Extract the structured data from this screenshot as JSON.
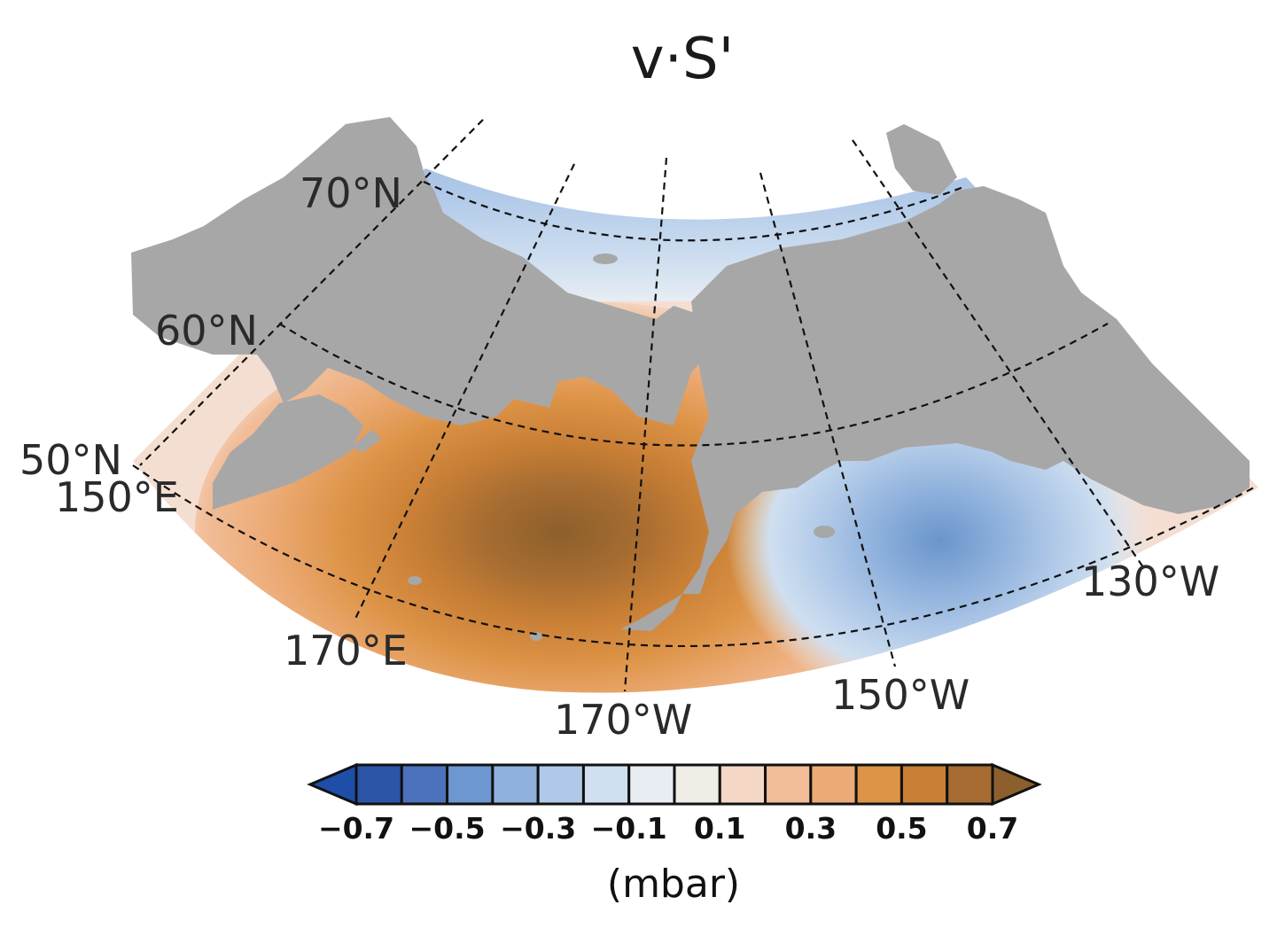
{
  "title": "v·S'",
  "map": {
    "projection": "polar stereographic sector",
    "ocean_background": "#f4ded2",
    "land_color": "#a7a7a7",
    "latitude_labels": [
      "70°N",
      "60°N",
      "50°N"
    ],
    "longitude_labels": [
      "150°E",
      "170°E",
      "170°W",
      "150°W",
      "130°W"
    ],
    "anomaly_centers": [
      {
        "name": "positive-max",
        "value": 0.7,
        "location": "Bering Sea / North Pacific near 170°W 55°N"
      },
      {
        "name": "negative-min",
        "value": -0.5,
        "location": "Gulf of Alaska near 145°W 55°N"
      }
    ]
  },
  "colorbar": {
    "unit": "(mbar)",
    "tick_labels": [
      "−0.7",
      "−0.5",
      "−0.3",
      "−0.1",
      "0.1",
      "0.3",
      "0.5",
      "0.7"
    ],
    "levels": [
      -0.7,
      -0.6,
      -0.5,
      -0.4,
      -0.3,
      -0.2,
      -0.1,
      0,
      0.1,
      0.2,
      0.3,
      0.4,
      0.5,
      0.6,
      0.7
    ],
    "colors": [
      "#1f4ea8",
      "#2c55a8",
      "#4c72bd",
      "#6d97d0",
      "#8fb1dc",
      "#b0c9e8",
      "#cfdff0",
      "#e7edf3",
      "#f0ece6",
      "#f4d8c5",
      "#f1bd98",
      "#ecab76",
      "#dd9346",
      "#c87f35",
      "#a66c31",
      "#8c5f2c"
    ]
  }
}
